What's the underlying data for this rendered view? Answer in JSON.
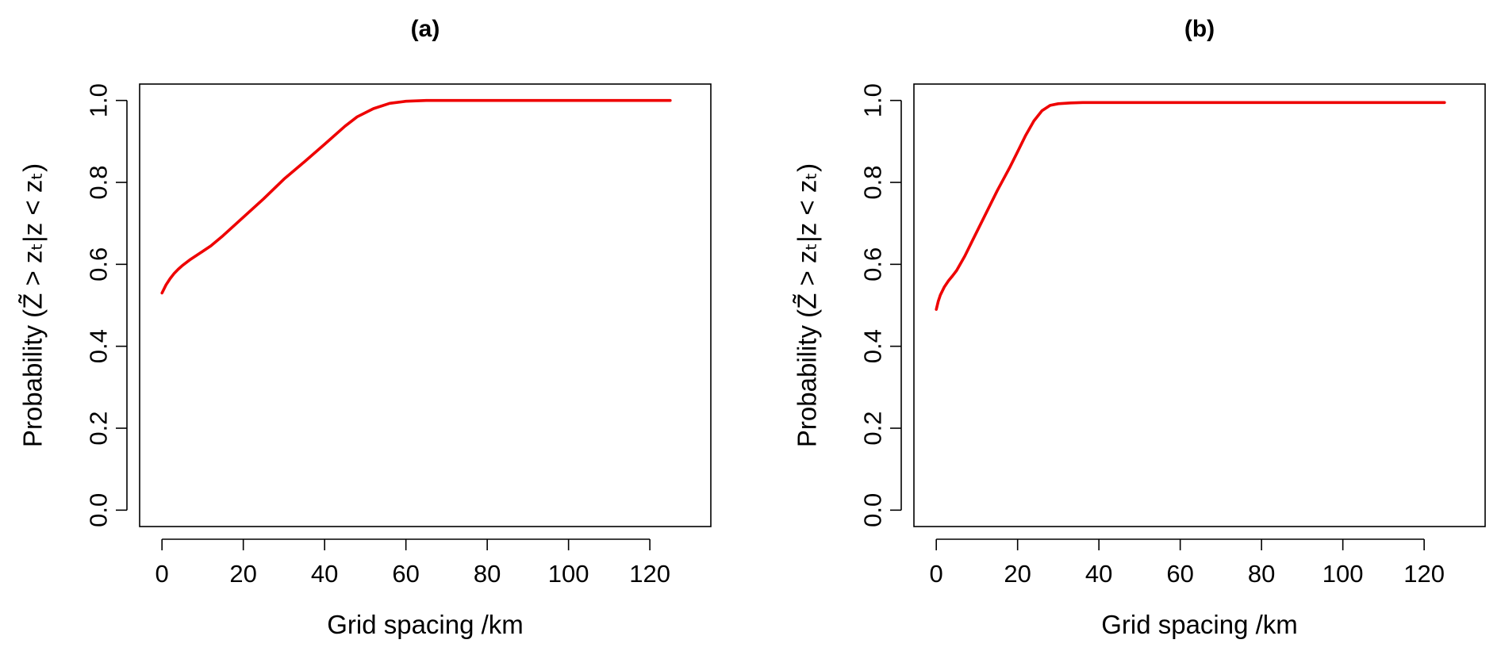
{
  "chart_data": [
    {
      "type": "line",
      "title": "(a)",
      "xlabel": "Grid spacing /km",
      "ylabel": "Probability (Z̃ > zₜ|z < zₜ)",
      "xlim": [
        -5.5,
        135
      ],
      "ylim": [
        -0.04,
        1.04
      ],
      "x_ticks": [
        "0",
        "20",
        "40",
        "60",
        "80",
        "100",
        "120"
      ],
      "y_ticks": [
        "0.0",
        "0.2",
        "0.4",
        "0.6",
        "0.8",
        "1.0"
      ],
      "grid": false,
      "series": [
        {
          "color": "#ee0000",
          "x": [
            0,
            1,
            2,
            3,
            4,
            5,
            7,
            9,
            12,
            15,
            20,
            25,
            30,
            35,
            40,
            45,
            48,
            52,
            56,
            60,
            65,
            70,
            80,
            100,
            125
          ],
          "y": [
            0.53,
            0.55,
            0.565,
            0.578,
            0.588,
            0.597,
            0.612,
            0.625,
            0.645,
            0.67,
            0.715,
            0.76,
            0.808,
            0.85,
            0.893,
            0.937,
            0.96,
            0.98,
            0.993,
            0.998,
            1.0,
            1.0,
            1.0,
            1.0,
            1.0
          ]
        }
      ]
    },
    {
      "type": "line",
      "title": "(b)",
      "xlabel": "Grid spacing /km",
      "ylabel": "Probability (Z̃ > zₜ|z < zₜ)",
      "xlim": [
        -5.5,
        135
      ],
      "ylim": [
        -0.04,
        1.04
      ],
      "x_ticks": [
        "0",
        "20",
        "40",
        "60",
        "80",
        "100",
        "120"
      ],
      "y_ticks": [
        "0.0",
        "0.2",
        "0.4",
        "0.6",
        "0.8",
        "1.0"
      ],
      "grid": false,
      "series": [
        {
          "color": "#ee0000",
          "x": [
            0,
            0.5,
            1,
            2,
            3,
            4,
            5,
            7,
            9,
            12,
            15,
            18,
            20,
            22,
            24,
            26,
            28,
            30,
            33,
            36,
            40,
            60,
            80,
            100,
            125
          ],
          "y": [
            0.49,
            0.51,
            0.525,
            0.545,
            0.56,
            0.572,
            0.585,
            0.62,
            0.66,
            0.72,
            0.78,
            0.835,
            0.875,
            0.915,
            0.95,
            0.975,
            0.988,
            0.992,
            0.994,
            0.995,
            0.995,
            0.995,
            0.995,
            0.995,
            0.995
          ]
        }
      ]
    }
  ]
}
